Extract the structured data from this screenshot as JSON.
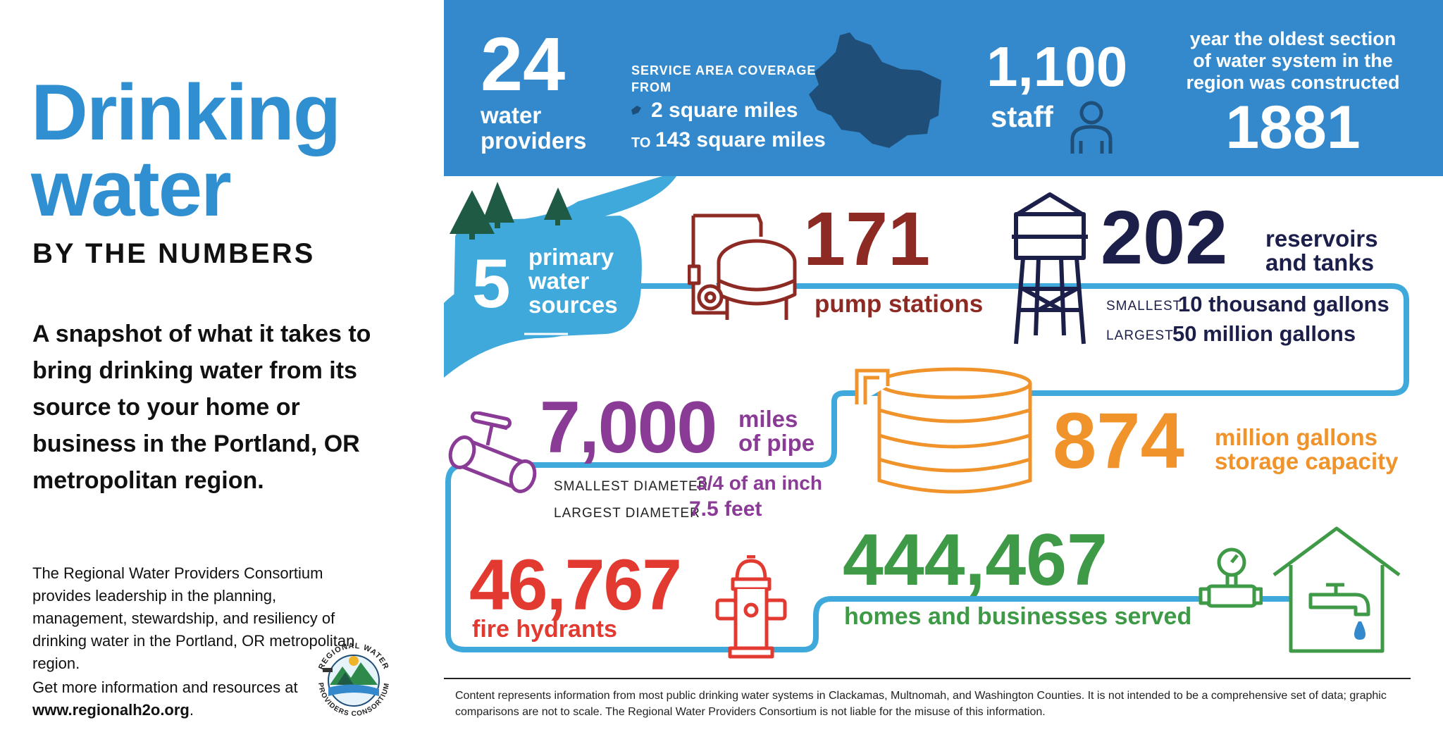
{
  "left": {
    "title_line1": "Drinking",
    "title_line2": "water",
    "subtitle": "BY THE NUMBERS",
    "intro": "A snapshot of what it takes to bring drinking water from its source to your home or business in the Portland, OR metropolitan region.",
    "about": "The Regional Water Providers Consortium provides leadership in the planning, management, stewardship, and resiliency of drinking water in the Portland, OR metropolitan region.",
    "more_prefix": "Get more information and resources at",
    "website": "www.regionalh2o.org",
    "more_suffix": ".",
    "logo_text_top": "REGIONAL WATER",
    "logo_text_bottom": "PROVIDERS CONSORTIUM"
  },
  "banner": {
    "providers_value": "24",
    "providers_label_1": "water",
    "providers_label_2": "providers",
    "coverage_label_1": "SERVICE AREA COVERAGE",
    "coverage_label_2": "FROM",
    "coverage_min": "2 square miles",
    "coverage_to": "TO",
    "coverage_max": "143 square miles",
    "staff_value": "1,100",
    "staff_label": "staff",
    "oldest_label_1": "year the oldest section",
    "oldest_label_2": "of water system in the",
    "oldest_label_3": "region was constructed",
    "oldest_value": "1881"
  },
  "sources": {
    "value": "5",
    "label_1": "primary",
    "label_2": "water",
    "label_3": "sources"
  },
  "pumps": {
    "value": "171",
    "label": "pump stations"
  },
  "reservoirs": {
    "value": "202",
    "label_1": "reservoirs",
    "label_2": "and tanks",
    "smallest_label": "SMALLEST",
    "smallest_value": "10 thousand gallons",
    "largest_label": "LARGEST",
    "largest_value": "50 million gallons"
  },
  "pipe": {
    "value": "7,000",
    "label_1": "miles",
    "label_2": "of pipe",
    "smallest_label": "SMALLEST DIAMETER",
    "smallest_value": "3/4 of an inch",
    "largest_label": "LARGEST DIAMETER",
    "largest_value": "7.5 feet"
  },
  "storage": {
    "value": "874",
    "label_1": "million gallons",
    "label_2": "storage capacity"
  },
  "hydrants": {
    "value": "46,767",
    "label": "fire hydrants"
  },
  "served": {
    "value": "444,467",
    "label": "homes and businesses served"
  },
  "footnote": "Content represents information from most public drinking water systems in Clackamas, Multnomah, and Washington Counties. It is not intended to be a comprehensive set of data; graphic comparisons are not to scale. The Regional Water Providers Consortium is not liable for the misuse of this information.",
  "colors": {
    "banner_blue": "#3389cb",
    "title_blue": "#2f8fd0",
    "pipe_blue": "#3fa9dc",
    "pump_red": "#8e2a24",
    "reservoir_navy": "#1c1f4a",
    "pipe_purple": "#8a3b96",
    "storage_orange": "#f0932b",
    "hydrant_red": "#e23a30",
    "served_green": "#3f9a47",
    "tree_green": "#1f5a45",
    "map_navy": "#1f4e79"
  }
}
